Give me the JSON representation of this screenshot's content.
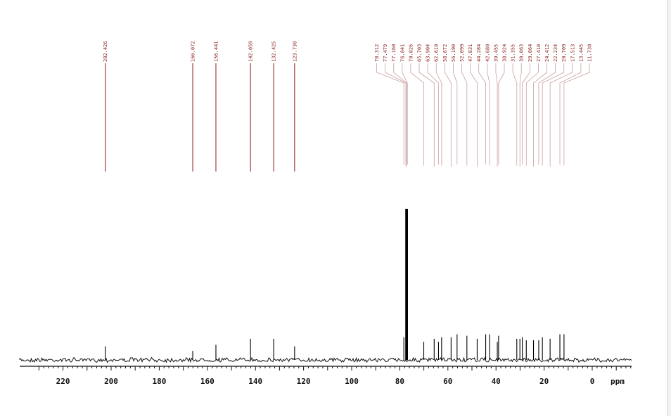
{
  "chart_data": {
    "type": "line",
    "title": "",
    "xlabel": "ppm",
    "xlim": [
      232,
      -15
    ],
    "x_reversed": true,
    "x_ticks": [
      220,
      200,
      180,
      160,
      140,
      120,
      100,
      80,
      60,
      40,
      20,
      0
    ],
    "x_tick_labels": [
      "220",
      "200",
      "180",
      "160",
      "140",
      "120",
      "100",
      "80",
      "60",
      "40",
      "20",
      "0"
    ],
    "peak_label_groups": [
      {
        "color": "#8b1a1a",
        "peaks": [
          {
            "label": "202.426",
            "ppm": 202.426,
            "intensity": 0.09
          },
          {
            "label": "166.072",
            "ppm": 166.072,
            "intensity": 0.06
          },
          {
            "label": "156.441",
            "ppm": 156.441,
            "intensity": 0.1
          },
          {
            "label": "142.059",
            "ppm": 142.059,
            "intensity": 0.14
          },
          {
            "label": "132.425",
            "ppm": 132.425,
            "intensity": 0.14
          },
          {
            "label": "123.730",
            "ppm": 123.73,
            "intensity": 0.09
          }
        ]
      },
      {
        "color": "#caa0a0",
        "peaks": [
          {
            "label": "78.312",
            "ppm": 78.312,
            "intensity": 0.15
          },
          {
            "label": "77.479",
            "ppm": 77.479,
            "intensity": 1.0
          },
          {
            "label": "77.160",
            "ppm": 77.16,
            "intensity": 1.0
          },
          {
            "label": "76.841",
            "ppm": 76.841,
            "intensity": 1.0
          },
          {
            "label": "70.026",
            "ppm": 70.026,
            "intensity": 0.12
          },
          {
            "label": "65.703",
            "ppm": 65.703,
            "intensity": 0.14
          },
          {
            "label": "63.904",
            "ppm": 63.904,
            "intensity": 0.12
          },
          {
            "label": "62.610",
            "ppm": 62.61,
            "intensity": 0.15
          },
          {
            "label": "58.672",
            "ppm": 58.672,
            "intensity": 0.15
          },
          {
            "label": "56.190",
            "ppm": 56.19,
            "intensity": 0.17
          },
          {
            "label": "52.099",
            "ppm": 52.099,
            "intensity": 0.16
          },
          {
            "label": "47.831",
            "ppm": 47.831,
            "intensity": 0.14
          },
          {
            "label": "44.284",
            "ppm": 44.284,
            "intensity": 0.17
          },
          {
            "label": "42.680",
            "ppm": 42.68,
            "intensity": 0.17
          },
          {
            "label": "39.455",
            "ppm": 39.455,
            "intensity": 0.12
          },
          {
            "label": "38.924",
            "ppm": 38.924,
            "intensity": 0.16
          },
          {
            "label": "31.355",
            "ppm": 31.355,
            "intensity": 0.14
          },
          {
            "label": "30.063",
            "ppm": 30.063,
            "intensity": 0.14
          },
          {
            "label": "29.064",
            "ppm": 29.064,
            "intensity": 0.15
          },
          {
            "label": "27.410",
            "ppm": 27.41,
            "intensity": 0.13
          },
          {
            "label": "24.412",
            "ppm": 24.412,
            "intensity": 0.13
          },
          {
            "label": "22.234",
            "ppm": 22.234,
            "intensity": 0.13
          },
          {
            "label": "20.709",
            "ppm": 20.709,
            "intensity": 0.15
          },
          {
            "label": "17.513",
            "ppm": 17.513,
            "intensity": 0.14
          },
          {
            "label": "13.445",
            "ppm": 13.445,
            "intensity": 0.17
          },
          {
            "label": "11.730",
            "ppm": 11.73,
            "intensity": 0.17
          }
        ]
      }
    ],
    "grid": false,
    "legend": "none"
  }
}
